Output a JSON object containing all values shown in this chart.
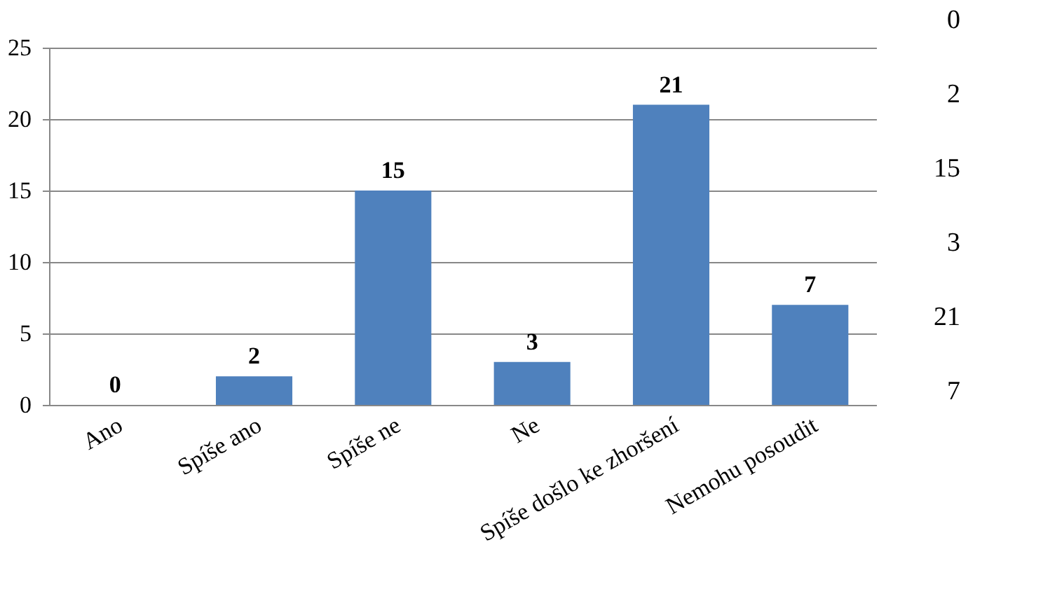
{
  "chart_data": {
    "type": "bar",
    "categories": [
      "Ano",
      "Spíše ano",
      "Spíše ne",
      "Ne",
      "Spíše došlo ke zhoršení",
      "Nemohu posoudit"
    ],
    "values": [
      0,
      2,
      15,
      3,
      21,
      7
    ],
    "color": "#4f81bd",
    "ylim": [
      0,
      25
    ],
    "yticks": [
      0,
      5,
      10,
      15,
      20,
      25
    ],
    "grid": "y",
    "data_labels": true,
    "annotations": [
      "0",
      "2",
      "15",
      "3",
      "21",
      "7"
    ]
  }
}
